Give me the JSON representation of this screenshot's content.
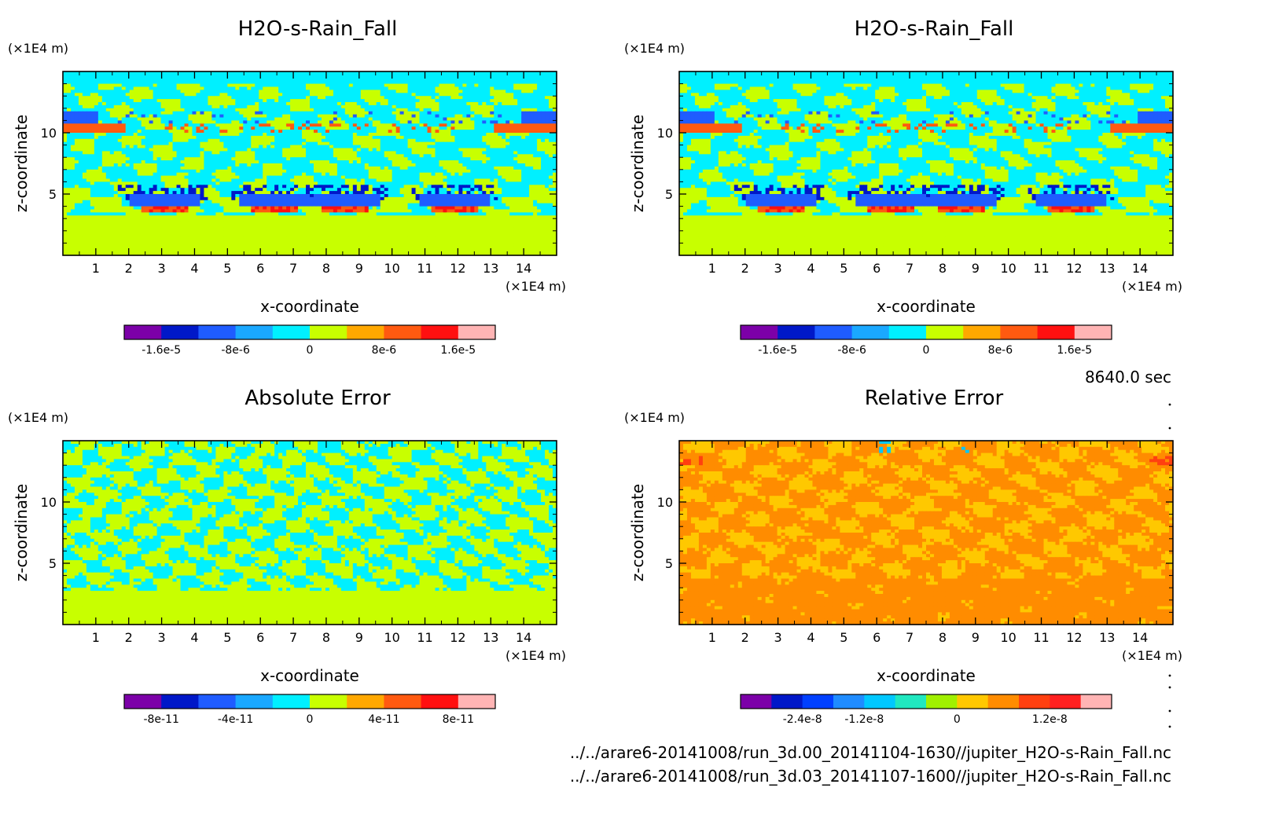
{
  "figure": {
    "time_label": "8640.0 sec",
    "file_lines": [
      "../../arare6-20141008/run_3d.00_20141104-1630//jupiter_H2O-s-Rain_Fall.nc",
      "../../arare6-20141008/run_3d.03_20141107-1600//jupiter_H2O-s-Rain_Fall.nc"
    ]
  },
  "chart_data": [
    {
      "type": "heatmap",
      "title": "H2O-s-Rain_Fall",
      "xlabel": "x-coordinate",
      "ylabel": "z-coordinate",
      "x_unit": "(×1E4 m)",
      "y_unit": "(×1E4 m)",
      "xlim": [
        0,
        15
      ],
      "ylim": [
        0,
        15
      ],
      "x_ticks": [
        1,
        2,
        3,
        4,
        5,
        6,
        7,
        8,
        9,
        10,
        11,
        12,
        13,
        14
      ],
      "y_ticks": [
        5,
        10
      ],
      "colorbar": {
        "colors": [
          "#7c00a8",
          "#0018c8",
          "#1f5cff",
          "#1aa8ff",
          "#00f0ff",
          "#c8ff00",
          "#ffa800",
          "#ff5a10",
          "#ff1010",
          "#ffb4b4"
        ],
        "labels": [
          "-1.6e-5",
          "-8e-6",
          "0",
          "8e-6",
          "1.6e-5"
        ]
      },
      "pattern": "rain"
    },
    {
      "type": "heatmap",
      "title": "H2O-s-Rain_Fall",
      "xlabel": "x-coordinate",
      "ylabel": "z-coordinate",
      "x_unit": "(×1E4 m)",
      "y_unit": "(×1E4 m)",
      "xlim": [
        0,
        15
      ],
      "ylim": [
        0,
        15
      ],
      "x_ticks": [
        1,
        2,
        3,
        4,
        5,
        6,
        7,
        8,
        9,
        10,
        11,
        12,
        13,
        14
      ],
      "y_ticks": [
        5,
        10
      ],
      "colorbar": {
        "colors": [
          "#7c00a8",
          "#0018c8",
          "#1f5cff",
          "#1aa8ff",
          "#00f0ff",
          "#c8ff00",
          "#ffa800",
          "#ff5a10",
          "#ff1010",
          "#ffb4b4"
        ],
        "labels": [
          "-1.6e-5",
          "-8e-6",
          "0",
          "8e-6",
          "1.6e-5"
        ]
      },
      "pattern": "rain"
    },
    {
      "type": "heatmap",
      "title": "Absolute Error",
      "xlabel": "x-coordinate",
      "ylabel": "z-coordinate",
      "x_unit": "(×1E4 m)",
      "y_unit": "(×1E4 m)",
      "xlim": [
        0,
        15
      ],
      "ylim": [
        0,
        15
      ],
      "x_ticks": [
        1,
        2,
        3,
        4,
        5,
        6,
        7,
        8,
        9,
        10,
        11,
        12,
        13,
        14
      ],
      "y_ticks": [
        5,
        10
      ],
      "colorbar": {
        "colors": [
          "#7c00a8",
          "#0018c8",
          "#1f5cff",
          "#1aa8ff",
          "#00f0ff",
          "#c8ff00",
          "#ffa800",
          "#ff5a10",
          "#ff1010",
          "#ffb4b4"
        ],
        "labels": [
          "-8e-11",
          "-4e-11",
          "0",
          "4e-11",
          "8e-11"
        ]
      },
      "pattern": "abs"
    },
    {
      "type": "heatmap",
      "title": "Relative Error",
      "xlabel": "x-coordinate",
      "ylabel": "z-coordinate",
      "x_unit": "(×1E4 m)",
      "y_unit": "(×1E4 m)",
      "xlim": [
        0,
        15
      ],
      "ylim": [
        0,
        15
      ],
      "x_ticks": [
        1,
        2,
        3,
        4,
        5,
        6,
        7,
        8,
        9,
        10,
        11,
        12,
        13,
        14
      ],
      "y_ticks": [
        5,
        10
      ],
      "colorbar": {
        "colors": [
          "#7c00a8",
          "#0018c8",
          "#0040ff",
          "#1f8cff",
          "#00c8ff",
          "#20e8c0",
          "#a0f000",
          "#ffc800",
          "#ff8c00",
          "#ff4010",
          "#ff2020",
          "#ffb4b4"
        ],
        "labels": [
          "-2.4e-8",
          "-1.2e-8",
          "0",
          "1.2e-8"
        ]
      },
      "pattern": "rel"
    }
  ]
}
